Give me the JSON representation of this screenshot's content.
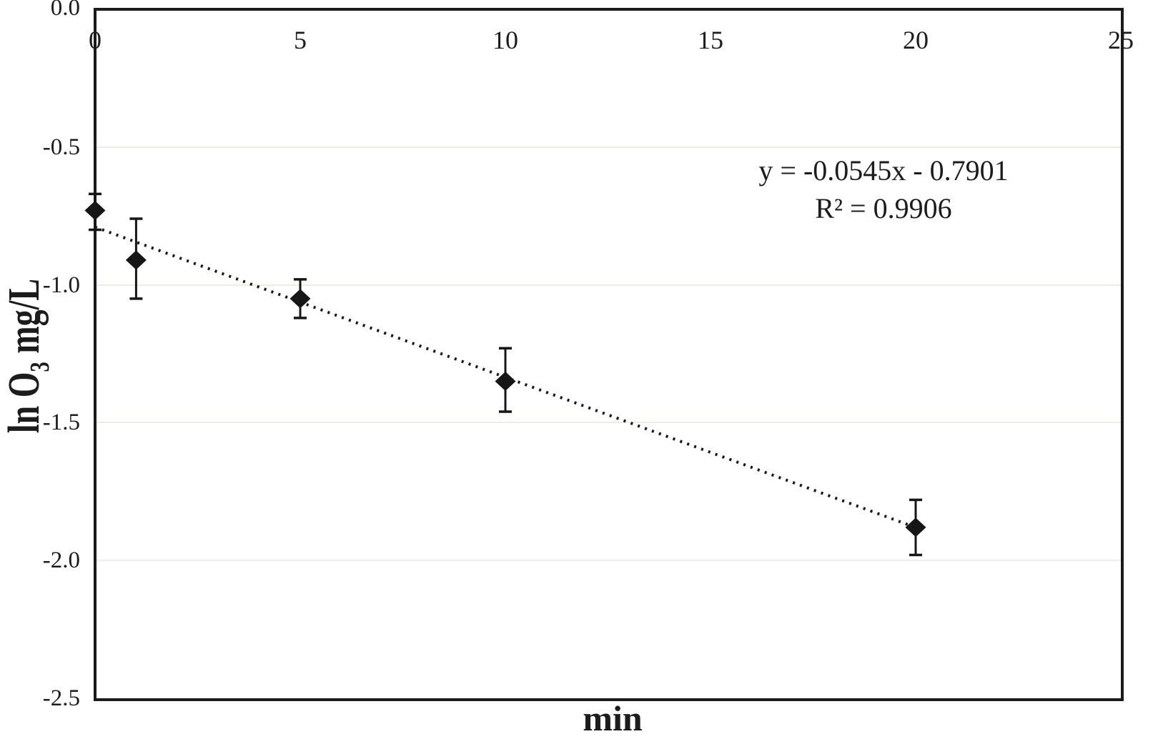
{
  "figure": {
    "background": "#ffffff",
    "frame_color": "#1a1a1a",
    "gridline_color": "#ecede3",
    "marker_color": "#161616",
    "text_color": "#1c1c1c"
  },
  "chart_data": {
    "type": "scatter",
    "title": "",
    "xlabel": "min",
    "ylabel": "ln O3 mg/L",
    "ylabel_parts": {
      "pre": "ln O",
      "sub": "3",
      "post": " mg/L"
    },
    "xlim": [
      0,
      25
    ],
    "ylim": [
      -2.5,
      0.0
    ],
    "x_ticks": [
      0,
      5,
      10,
      15,
      20,
      25
    ],
    "x_tick_labels": [
      "0",
      "5",
      "10",
      "15",
      "20",
      "25"
    ],
    "y_ticks": [
      0,
      -0.5,
      -1,
      -1.5,
      -2,
      -2.5
    ],
    "y_tick_labels": [
      "0.0",
      "-0.5",
      "-1.0",
      "-1.5",
      "-2.0",
      "-2.5"
    ],
    "grid": "horizontal-light",
    "legend": "none",
    "series": [
      {
        "marker": "diamond",
        "points": [
          {
            "x": 0,
            "y": -0.73,
            "err_up": 0.06,
            "err_down": 0.07
          },
          {
            "x": 1,
            "y": -0.91,
            "err_up": 0.15,
            "err_down": 0.14
          },
          {
            "x": 5,
            "y": -1.05,
            "err_up": 0.07,
            "err_down": 0.07
          },
          {
            "x": 10,
            "y": -1.35,
            "err_up": 0.12,
            "err_down": 0.11
          },
          {
            "x": 20,
            "y": -1.88,
            "err_up": 0.1,
            "err_down": 0.1
          }
        ]
      }
    ],
    "trendline": {
      "type": "linear",
      "slope": -0.0545,
      "intercept": -0.7901,
      "x_start": 0,
      "x_end": 20,
      "style": "dotted"
    }
  },
  "annotation": {
    "line1": "y = -0.0545x - 0.7901",
    "line2": "R² = 0.9906"
  }
}
